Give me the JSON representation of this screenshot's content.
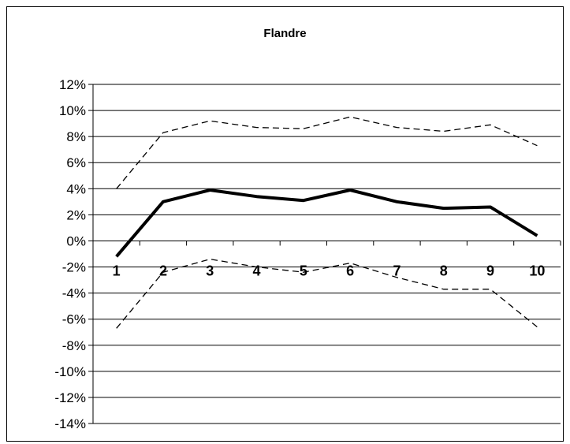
{
  "chart_data": {
    "type": "line",
    "title": "Flandre",
    "xlabel": "",
    "ylabel": "",
    "categories": [
      "1",
      "2",
      "3",
      "4",
      "5",
      "6",
      "7",
      "8",
      "9",
      "10"
    ],
    "y_tick_labels": [
      "12%",
      "10%",
      "8%",
      "6%",
      "4%",
      "2%",
      "0%",
      "-2%",
      "-4%",
      "-6%",
      "-8%",
      "-10%",
      "-12%",
      "-14%"
    ],
    "ylim": [
      -14,
      12
    ],
    "y_unit": "%",
    "grid": true,
    "legend": "none",
    "series": [
      {
        "values": [
          -1.2,
          3.0,
          3.9,
          3.4,
          3.1,
          3.9,
          3.0,
          2.5,
          2.6,
          0.4
        ],
        "style": "solid-bold",
        "color": "#000000"
      },
      {
        "values": [
          4.0,
          8.3,
          9.2,
          8.7,
          8.6,
          9.5,
          8.7,
          8.4,
          8.9,
          7.3
        ],
        "style": "dashed",
        "color": "#000000"
      },
      {
        "values": [
          -6.7,
          -2.4,
          -1.4,
          -2.0,
          -2.4,
          -1.7,
          -2.8,
          -3.7,
          -3.7,
          -6.6
        ],
        "style": "dashed",
        "color": "#000000"
      }
    ]
  }
}
